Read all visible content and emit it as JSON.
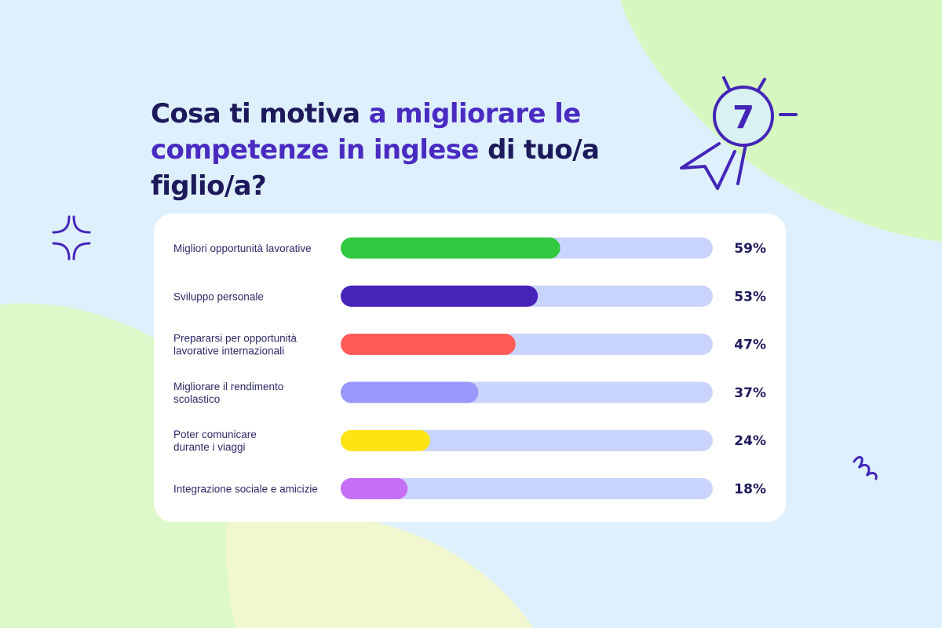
{
  "title": {
    "part1": "Cosa ti motiva ",
    "part2": "a migliorare le competenze in inglese",
    "part3": " di tuo/a figlio/a?"
  },
  "colors": {
    "background": "#dff0fd",
    "title_dark": "#1d1a5c",
    "title_accent": "#4a2bc2",
    "track": "#c8d4fb",
    "card": "#ffffff"
  },
  "icons": [
    "award-ribbon-icon",
    "sparkle-icon",
    "squiggle-icon"
  ],
  "award_number": "7",
  "chart_data": {
    "type": "bar",
    "orientation": "horizontal",
    "xlim": [
      0,
      100
    ],
    "grid": false,
    "categories": [
      [
        "Migliori opportunità lavorative"
      ],
      [
        "Sviluppo personale"
      ],
      [
        "Prepararsi per opportunità",
        "lavorative internazionali"
      ],
      [
        "Migliorare il rendimento",
        "scolastico"
      ],
      [
        "Poter comunicare",
        "durante i viaggi"
      ],
      [
        "Integrazione sociale e amicizie"
      ]
    ],
    "values": [
      59,
      53,
      47,
      37,
      24,
      18
    ],
    "value_labels": [
      "59%",
      "53%",
      "47%",
      "37%",
      "24%",
      "18%"
    ],
    "bar_colors": [
      "#31c93f",
      "#4624b8",
      "#ff5a57",
      "#9a97fb",
      "#ffe413",
      "#c66ef6"
    ]
  }
}
